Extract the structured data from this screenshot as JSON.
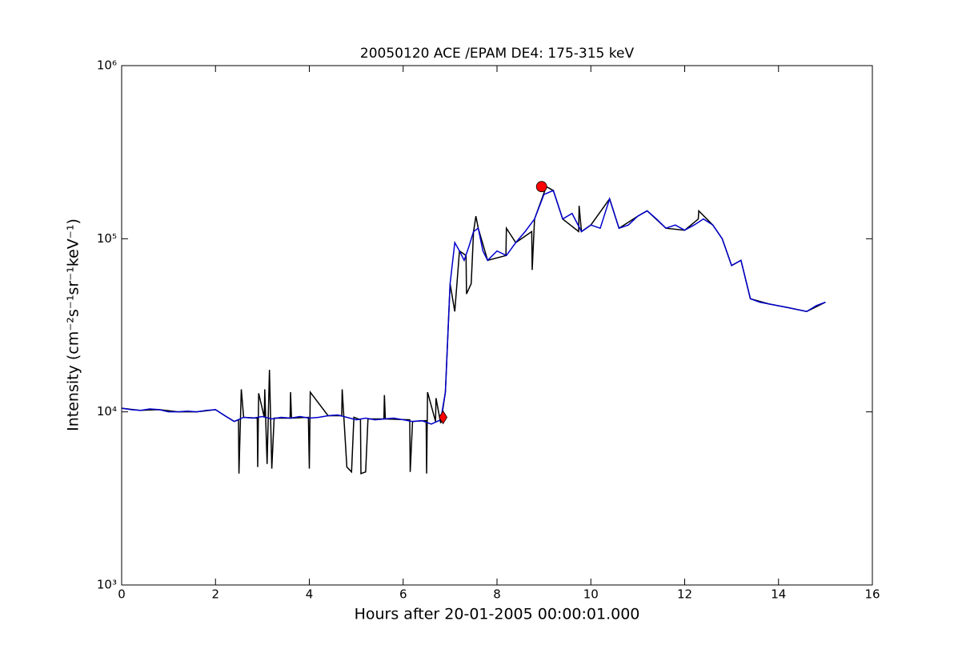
{
  "chart_data": {
    "type": "line",
    "title": "20050120 ACE /EPAM DE4: 175-315 keV",
    "xlabel": "Hours after 20-01-2005 00:00:01.000",
    "ylabel": "Intensity (cm⁻²s⁻¹sr⁻¹keV⁻¹)",
    "log_y": true,
    "xlim": [
      0,
      16
    ],
    "xticks": [
      0,
      2,
      4,
      6,
      8,
      10,
      12,
      14,
      16
    ],
    "ylim": [
      1000,
      1000000
    ],
    "yticks": [
      {
        "value": 1000,
        "label": "10³"
      },
      {
        "value": 10000,
        "label": "10⁴"
      },
      {
        "value": 100000,
        "label": "10⁵"
      },
      {
        "value": 1000000,
        "label": "10⁶"
      }
    ],
    "series": [
      {
        "color": "#000000",
        "x": [
          0,
          0.4,
          0.8,
          1.2,
          1.6,
          2.0,
          2.2,
          2.4,
          2.49,
          2.5,
          2.55,
          2.6,
          2.89,
          2.9,
          2.92,
          3.04,
          3.05,
          3.1,
          3.15,
          3.2,
          3.25,
          3.59,
          3.6,
          3.62,
          3.98,
          4.0,
          4.02,
          4.4,
          4.69,
          4.7,
          4.8,
          4.9,
          4.95,
          5.09,
          5.1,
          5.2,
          5.25,
          5.59,
          5.6,
          5.62,
          6.14,
          6.15,
          6.2,
          6.49,
          6.5,
          6.52,
          6.69,
          6.7,
          6.8,
          6.9,
          7.0,
          7.1,
          7.2,
          7.34,
          7.35,
          7.45,
          7.5,
          7.55,
          7.6,
          7.8,
          8.19,
          8.2,
          8.4,
          8.74,
          8.75,
          8.8,
          9.05,
          9.2,
          9.4,
          9.74,
          9.75,
          9.8,
          10.0,
          10.4,
          10.6,
          11.0,
          11.2,
          11.6,
          12.0,
          12.29,
          12.3,
          12.6,
          12.8,
          13.0,
          13.2,
          13.4,
          13.8,
          14.2,
          14.6,
          15.0
        ],
        "values": [
          10500,
          10200,
          10300,
          10000,
          10000,
          10300,
          9500,
          8800,
          9000,
          4400,
          13500,
          9300,
          9200,
          4800,
          12800,
          9300,
          13500,
          5000,
          17500,
          4700,
          9200,
          9200,
          13000,
          9200,
          9300,
          4700,
          13000,
          9500,
          9500,
          13500,
          4800,
          4500,
          9300,
          9000,
          4400,
          4500,
          9100,
          9100,
          12500,
          9100,
          9000,
          4500,
          8800,
          8900,
          4400,
          13000,
          8800,
          12000,
          8600,
          13000,
          55000,
          38000,
          85000,
          80000,
          48000,
          55000,
          110000,
          135000,
          115000,
          75000,
          80000,
          115000,
          95000,
          110000,
          66000,
          130000,
          200000,
          190000,
          130000,
          110000,
          155000,
          110000,
          120000,
          170000,
          115000,
          135000,
          145000,
          115000,
          112000,
          130000,
          145000,
          120000,
          100000,
          70000,
          75000,
          45000,
          42000,
          40000,
          38000,
          43000
        ]
      },
      {
        "color": "#0000cc",
        "x": [
          0,
          0.2,
          0.4,
          0.6,
          0.8,
          1.0,
          1.2,
          1.4,
          1.6,
          1.8,
          2.0,
          2.2,
          2.4,
          2.6,
          2.8,
          3.0,
          3.2,
          3.4,
          3.6,
          3.8,
          4.0,
          4.2,
          4.4,
          4.6,
          4.8,
          5.0,
          5.2,
          5.4,
          5.6,
          5.8,
          6.0,
          6.2,
          6.4,
          6.6,
          6.8,
          6.9,
          7.0,
          7.1,
          7.2,
          7.3,
          7.4,
          7.5,
          7.6,
          7.7,
          7.8,
          8.0,
          8.2,
          8.4,
          8.6,
          8.8,
          9.0,
          9.2,
          9.4,
          9.6,
          9.8,
          10.0,
          10.2,
          10.4,
          10.6,
          10.8,
          11.0,
          11.2,
          11.4,
          11.6,
          11.8,
          12.0,
          12.2,
          12.4,
          12.6,
          12.8,
          13.0,
          13.2,
          13.4,
          13.6,
          13.8,
          14.0,
          14.2,
          14.4,
          14.6,
          14.8,
          15.0
        ],
        "values": [
          10500,
          10300,
          10200,
          10400,
          10300,
          10000,
          10000,
          10100,
          10000,
          10200,
          10300,
          9500,
          8800,
          9300,
          9200,
          9400,
          9100,
          9300,
          9200,
          9400,
          9200,
          9300,
          9500,
          9600,
          9300,
          9000,
          9200,
          9000,
          9100,
          9200,
          9000,
          8800,
          8900,
          8500,
          9000,
          13000,
          55000,
          95000,
          85000,
          75000,
          90000,
          110000,
          115000,
          85000,
          75000,
          85000,
          80000,
          95000,
          110000,
          130000,
          180000,
          190000,
          130000,
          140000,
          110000,
          120000,
          115000,
          170000,
          115000,
          120000,
          135000,
          145000,
          130000,
          115000,
          120000,
          112000,
          120000,
          130000,
          120000,
          100000,
          70000,
          75000,
          45000,
          43000,
          42000,
          41000,
          40000,
          39000,
          38000,
          41000,
          43000
        ]
      }
    ],
    "points": [
      {
        "x": 6.85,
        "value": 9300,
        "marker": "diamond",
        "color": "#ff0000"
      },
      {
        "x": 8.95,
        "value": 200000,
        "marker": "circle",
        "color": "#ff0000"
      }
    ]
  }
}
